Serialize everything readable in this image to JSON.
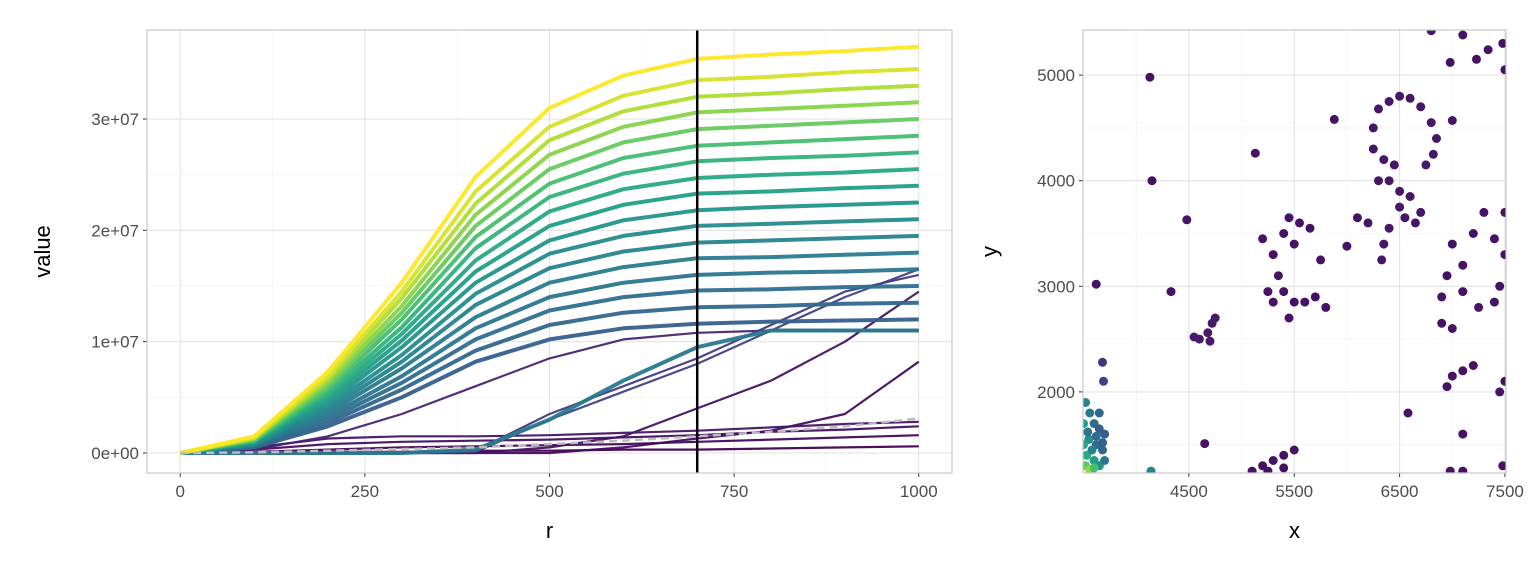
{
  "chart_data": [
    {
      "type": "line",
      "xlabel": "r",
      "ylabel": "value",
      "xlim": [
        -45,
        1045
      ],
      "ylim": [
        -1800000,
        38000000
      ],
      "value_unit": 1000000,
      "xticks": [
        0,
        250,
        500,
        750,
        1000
      ],
      "xtick_labels": [
        "0",
        "250",
        "500",
        "750",
        "1000"
      ],
      "yticks": [
        0,
        10000000,
        20000000,
        30000000
      ],
      "ytick_labels": [
        "0e+00",
        "1e+07",
        "2e+07",
        "3e+07"
      ],
      "grid": true,
      "color_scale": "viridis",
      "vline_x": 700,
      "r": [
        0,
        100,
        200,
        300,
        400,
        500,
        600,
        700,
        800,
        900,
        1000
      ],
      "series": [
        {
          "c": 0.1,
          "values": [
            0,
            0.3,
            1.5,
            3.5,
            6,
            8.5,
            10.2,
            10.8,
            11,
            11,
            11
          ]
        },
        {
          "c": 0.3,
          "values": [
            0,
            0.5,
            2.4,
            5.0,
            8.2,
            10.2,
            11.2,
            11.6,
            11.8,
            11.9,
            12
          ]
        },
        {
          "c": 0.33,
          "values": [
            0,
            0.5,
            2.7,
            5.7,
            9.2,
            11.5,
            12.6,
            13.1,
            13.2,
            13.4,
            13.5
          ]
        },
        {
          "c": 0.36,
          "values": [
            0,
            0.6,
            3.0,
            6.3,
            10.2,
            12.8,
            14.0,
            14.6,
            14.7,
            14.9,
            15
          ]
        },
        {
          "c": 0.39,
          "values": [
            0,
            0.7,
            3.3,
            6.9,
            11.2,
            14.0,
            15.3,
            16.0,
            16.2,
            16.3,
            16.5
          ]
        },
        {
          "c": 0.42,
          "values": [
            0,
            0.7,
            3.6,
            7.6,
            12.2,
            15.3,
            16.7,
            17.5,
            17.6,
            17.8,
            18
          ]
        },
        {
          "c": 0.45,
          "values": [
            0,
            0.8,
            3.9,
            8.2,
            13.3,
            16.6,
            18.1,
            18.9,
            19.1,
            19.3,
            19.5
          ]
        },
        {
          "c": 0.48,
          "values": [
            0,
            0.8,
            4.2,
            8.8,
            14.3,
            17.9,
            19.5,
            20.4,
            20.6,
            20.8,
            21
          ]
        },
        {
          "c": 0.52,
          "values": [
            0,
            0.9,
            4.5,
            9.5,
            15.3,
            19.1,
            20.9,
            21.8,
            22.1,
            22.3,
            22.5
          ]
        },
        {
          "c": 0.56,
          "values": [
            0,
            1.0,
            4.8,
            10.1,
            16.3,
            20.4,
            22.3,
            23.3,
            23.5,
            23.8,
            24
          ]
        },
        {
          "c": 0.6,
          "values": [
            0,
            1.0,
            5.1,
            10.7,
            17.3,
            21.7,
            23.7,
            24.7,
            25.0,
            25.2,
            25.5
          ]
        },
        {
          "c": 0.65,
          "values": [
            0,
            1.1,
            5.4,
            11.3,
            18.4,
            23.0,
            25.1,
            26.2,
            26.5,
            26.7,
            27
          ]
        },
        {
          "c": 0.7,
          "values": [
            0,
            1.1,
            5.7,
            12.0,
            19.4,
            24.2,
            26.5,
            27.6,
            27.9,
            28.2,
            28.5
          ]
        },
        {
          "c": 0.76,
          "values": [
            0,
            1.2,
            6.0,
            12.6,
            20.4,
            25.5,
            27.9,
            29.1,
            29.4,
            29.7,
            30
          ]
        },
        {
          "c": 0.82,
          "values": [
            0,
            1.3,
            6.3,
            13.2,
            21.4,
            26.8,
            29.3,
            30.6,
            30.9,
            31.2,
            31.5
          ]
        },
        {
          "c": 0.88,
          "values": [
            0,
            1.3,
            6.6,
            13.9,
            22.4,
            28.1,
            30.7,
            32.0,
            32.3,
            32.7,
            33
          ]
        },
        {
          "c": 0.94,
          "values": [
            0,
            1.4,
            6.9,
            14.5,
            23.5,
            29.3,
            32.1,
            33.5,
            33.8,
            34.2,
            34.5
          ]
        },
        {
          "c": 1.0,
          "values": [
            0,
            1.5,
            7.3,
            15.3,
            24.8,
            31.0,
            33.9,
            35.4,
            35.8,
            36.1,
            36.5
          ]
        },
        {
          "c": 0.4,
          "values": [
            0,
            0,
            0,
            0,
            0.3,
            3,
            6.5,
            9.5,
            11,
            11,
            11
          ]
        },
        {
          "c": 0.2,
          "values": [
            0,
            0,
            0,
            0,
            0.1,
            3,
            5.5,
            8,
            11,
            14,
            16.5
          ]
        },
        {
          "c": 0.18,
          "values": [
            0,
            0,
            0,
            0,
            0.2,
            3.5,
            6,
            8.5,
            11.5,
            14.5,
            16
          ]
        },
        {
          "c": 0.05,
          "values": [
            0,
            0,
            0,
            0,
            0,
            0.5,
            1.5,
            4,
            6.5,
            10,
            14.5
          ]
        },
        {
          "c": 0.03,
          "values": [
            0,
            0,
            0,
            0,
            0,
            0,
            0.5,
            1.3,
            2,
            3.5,
            8.2
          ]
        },
        {
          "c": 0.06,
          "values": [
            0,
            0.5,
            1.3,
            1.5,
            1.5,
            1.6,
            1.8,
            2,
            2.3,
            2.6,
            2.8
          ]
        },
        {
          "c": 0.04,
          "values": [
            0,
            0.3,
            0.8,
            1.0,
            1.1,
            1.2,
            1.4,
            1.6,
            1.9,
            2.1,
            2.4
          ]
        },
        {
          "c": 0.02,
          "values": [
            0,
            0.1,
            0.3,
            0.5,
            0.6,
            0.7,
            0.8,
            1.0,
            1.2,
            1.4,
            1.6
          ]
        },
        {
          "c": 0.0,
          "values": [
            0,
            0,
            0.1,
            0.1,
            0.2,
            0.2,
            0.3,
            0.3,
            0.4,
            0.5,
            0.6
          ]
        }
      ],
      "reference_dashed": {
        "color": "#bdbdbd",
        "values": [
          0,
          0.05,
          0.2,
          0.35,
          0.5,
          0.8,
          1.1,
          1.5,
          1.9,
          2.4,
          3.1
        ]
      }
    },
    {
      "type": "scatter",
      "xlabel": "x",
      "ylabel": "y",
      "xlim": [
        3495,
        7510
      ],
      "ylim": [
        1232,
        5427
      ],
      "xticks": [
        4500,
        5500,
        6500,
        7500
      ],
      "xtick_labels": [
        "4500",
        "5500",
        "6500",
        "7500"
      ],
      "yticks": [
        2000,
        3000,
        4000,
        5000
      ],
      "ytick_labels": [
        "2000",
        "3000",
        "4000",
        "5000"
      ],
      "grid": true,
      "color_scale": "viridis",
      "points": [
        [
          4130,
          4980,
          0.05
        ],
        [
          4150,
          4000,
          0.05
        ],
        [
          3620,
          3020,
          0.05
        ],
        [
          4330,
          2950,
          0.05
        ],
        [
          4140,
          1250,
          0.45
        ],
        [
          5130,
          4260,
          0.05
        ],
        [
          4480,
          3630,
          0.05
        ],
        [
          4650,
          1510,
          0.05
        ],
        [
          3680,
          2280,
          0.15
        ],
        [
          3690,
          2100,
          0.2
        ],
        [
          5880,
          4580,
          0.05
        ],
        [
          6000,
          3380,
          0.05
        ],
        [
          7000,
          4570,
          0.05
        ],
        [
          7340,
          5240,
          0.05
        ],
        [
          6800,
          5420,
          0.05
        ],
        [
          7100,
          5380,
          0.05
        ],
        [
          7230,
          5150,
          0.05
        ],
        [
          7480,
          5300,
          0.05
        ],
        [
          7500,
          5050,
          0.05
        ],
        [
          6980,
          5120,
          0.05
        ],
        [
          6300,
          4680,
          0.06
        ],
        [
          6400,
          4750,
          0.06
        ],
        [
          6500,
          4800,
          0.06
        ],
        [
          6600,
          4780,
          0.06
        ],
        [
          6700,
          4700,
          0.06
        ],
        [
          6800,
          4550,
          0.06
        ],
        [
          6850,
          4400,
          0.06
        ],
        [
          6820,
          4250,
          0.07
        ],
        [
          6750,
          4150,
          0.07
        ],
        [
          6250,
          4500,
          0.06
        ],
        [
          6250,
          4300,
          0.06
        ],
        [
          6350,
          4200,
          0.06
        ],
        [
          6300,
          4000,
          0.06
        ],
        [
          6400,
          4000,
          0.06
        ],
        [
          6500,
          3900,
          0.06
        ],
        [
          6450,
          4150,
          0.06
        ],
        [
          6500,
          3750,
          0.06
        ],
        [
          6550,
          3650,
          0.06
        ],
        [
          6650,
          3600,
          0.06
        ],
        [
          6700,
          3700,
          0.06
        ],
        [
          6600,
          3850,
          0.06
        ],
        [
          6400,
          3550,
          0.06
        ],
        [
          6350,
          3400,
          0.06
        ],
        [
          6330,
          3250,
          0.06
        ],
        [
          6200,
          3600,
          0.06
        ],
        [
          6100,
          3650,
          0.05
        ],
        [
          5400,
          3500,
          0.05
        ],
        [
          5450,
          3650,
          0.05
        ],
        [
          5550,
          3600,
          0.05
        ],
        [
          5500,
          3400,
          0.05
        ],
        [
          5300,
          3300,
          0.05
        ],
        [
          5350,
          3100,
          0.05
        ],
        [
          5250,
          2950,
          0.05
        ],
        [
          5300,
          2850,
          0.05
        ],
        [
          5400,
          2950,
          0.05
        ],
        [
          5500,
          2850,
          0.05
        ],
        [
          5600,
          2850,
          0.05
        ],
        [
          5700,
          2900,
          0.05
        ],
        [
          5800,
          2800,
          0.05
        ],
        [
          5450,
          2700,
          0.05
        ],
        [
          5200,
          3450,
          0.05
        ],
        [
          5650,
          3550,
          0.05
        ],
        [
          5750,
          3250,
          0.05
        ],
        [
          4550,
          2520,
          0.07
        ],
        [
          4600,
          2500,
          0.07
        ],
        [
          4680,
          2560,
          0.07
        ],
        [
          4720,
          2650,
          0.07
        ],
        [
          4750,
          2700,
          0.07
        ],
        [
          4700,
          2480,
          0.07
        ],
        [
          5100,
          1250,
          0.05
        ],
        [
          5200,
          1300,
          0.05
        ],
        [
          5300,
          1350,
          0.05
        ],
        [
          5400,
          1400,
          0.05
        ],
        [
          5500,
          1450,
          0.05
        ],
        [
          5250,
          1250,
          0.05
        ],
        [
          5400,
          1280,
          0.05
        ],
        [
          7000,
          3400,
          0.05
        ],
        [
          7100,
          3200,
          0.05
        ],
        [
          6950,
          3100,
          0.05
        ],
        [
          6900,
          2900,
          0.05
        ],
        [
          7100,
          2950,
          0.05
        ],
        [
          7200,
          3500,
          0.05
        ],
        [
          7400,
          3450,
          0.05
        ],
        [
          7500,
          3300,
          0.05
        ],
        [
          7450,
          3000,
          0.05
        ],
        [
          6900,
          2650,
          0.05
        ],
        [
          7000,
          2600,
          0.05
        ],
        [
          7250,
          2800,
          0.05
        ],
        [
          7400,
          2850,
          0.05
        ],
        [
          7500,
          3700,
          0.05
        ],
        [
          7300,
          3700,
          0.05
        ],
        [
          7000,
          2150,
          0.05
        ],
        [
          7100,
          2200,
          0.05
        ],
        [
          7200,
          2250,
          0.05
        ],
        [
          6950,
          2050,
          0.05
        ],
        [
          7450,
          2000,
          0.05
        ],
        [
          7500,
          2100,
          0.05
        ],
        [
          7100,
          1600,
          0.05
        ],
        [
          6580,
          1800,
          0.05
        ],
        [
          6980,
          1250,
          0.05
        ],
        [
          7100,
          1250,
          0.05
        ],
        [
          7480,
          1300,
          0.05
        ],
        [
          3520,
          1900,
          0.45
        ],
        [
          3560,
          1800,
          0.4
        ],
        [
          3600,
          1700,
          0.35
        ],
        [
          3650,
          1650,
          0.3
        ],
        [
          3700,
          1600,
          0.3
        ],
        [
          3550,
          1550,
          0.5
        ],
        [
          3620,
          1500,
          0.35
        ],
        [
          3680,
          1450,
          0.32
        ],
        [
          3530,
          1400,
          0.6
        ],
        [
          3600,
          1350,
          0.55
        ],
        [
          3650,
          1300,
          0.5
        ],
        [
          3520,
          1300,
          0.75
        ],
        [
          3560,
          1260,
          0.85
        ],
        [
          3600,
          1280,
          0.7
        ],
        [
          3700,
          1350,
          0.4
        ],
        [
          3580,
          1450,
          0.45
        ],
        [
          3500,
          1700,
          0.55
        ],
        [
          3500,
          1500,
          0.6
        ],
        [
          3650,
          1800,
          0.33
        ],
        [
          3540,
          1620,
          0.38
        ],
        [
          3620,
          1580,
          0.34
        ],
        [
          3680,
          1520,
          0.31
        ]
      ]
    }
  ]
}
